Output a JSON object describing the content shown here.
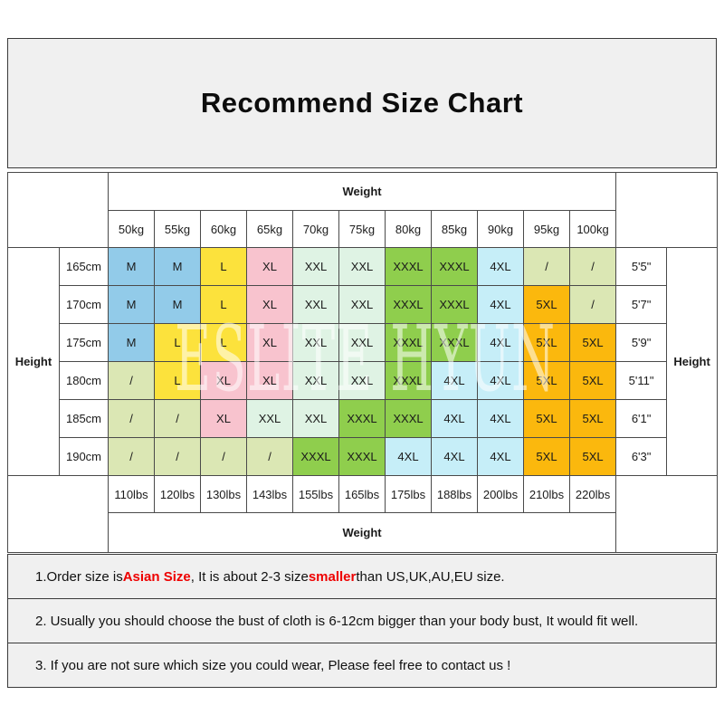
{
  "title": "Recommend Size Chart",
  "watermark": "ESLITE HYUN",
  "colors": {
    "title_bg": "#f0f0f0",
    "note_bg": "#f0f0f0",
    "border": "#4a4a4a",
    "accent_red": "#ee0000"
  },
  "table": {
    "weight_label_top": "Weight",
    "weight_label_bottom": "Weight",
    "height_label_left": "Height",
    "height_label_right": "Height",
    "weights_kg": [
      "50kg",
      "55kg",
      "60kg",
      "65kg",
      "70kg",
      "75kg",
      "80kg",
      "85kg",
      "90kg",
      "95kg",
      "100kg"
    ],
    "weights_lbs": [
      "110lbs",
      "120lbs",
      "130lbs",
      "143lbs",
      "155lbs",
      "165lbs",
      "175lbs",
      "188lbs",
      "200lbs",
      "210lbs",
      "220lbs"
    ],
    "heights_cm": [
      "165cm",
      "170cm",
      "175cm",
      "180cm",
      "185cm",
      "190cm"
    ],
    "heights_ft": [
      "5'5\"",
      "5'7\"",
      "5'9\"",
      "5'11\"",
      "6'1\"",
      "6'3\""
    ],
    "sizes": [
      [
        "M",
        "M",
        "L",
        "XL",
        "XXL",
        "XXL",
        "XXXL",
        "XXXL",
        "4XL",
        "/",
        "/"
      ],
      [
        "M",
        "M",
        "L",
        "XL",
        "XXL",
        "XXL",
        "XXXL",
        "XXXL",
        "4XL",
        "5XL",
        "/"
      ],
      [
        "M",
        "L",
        "L",
        "XL",
        "XXL",
        "XXL",
        "XXXL",
        "XXXL",
        "4XL",
        "5XL",
        "5XL"
      ],
      [
        "/",
        "L",
        "XL",
        "XL",
        "XXL",
        "XXL",
        "XXXL",
        "4XL",
        "4XL",
        "5XL",
        "5XL"
      ],
      [
        "/",
        "/",
        "XL",
        "XXL",
        "XXL",
        "XXXL",
        "XXXL",
        "4XL",
        "4XL",
        "5XL",
        "5XL"
      ],
      [
        "/",
        "/",
        "/",
        "/",
        "XXXL",
        "XXXL",
        "4XL",
        "4XL",
        "4XL",
        "5XL",
        "5XL"
      ]
    ],
    "size_colors": {
      "M": "#92cbe9",
      "L": "#fce23c",
      "XL": "#f8c3ce",
      "XXL": "#dff3e4",
      "XXXL": "#8fce4d",
      "4XL": "#c6eef8",
      "5XL": "#fbb80d",
      "/": "#dbe7b4"
    }
  },
  "notes": [
    {
      "parts": [
        {
          "text": "1.Order size is ",
          "style": "normal"
        },
        {
          "text": "Asian Size",
          "style": "red-bold"
        },
        {
          "text": ", It is about 2-3 size ",
          "style": "normal"
        },
        {
          "text": "smaller",
          "style": "red-bold"
        },
        {
          "text": " than US,UK,AU,EU size.",
          "style": "normal"
        }
      ]
    },
    {
      "parts": [
        {
          "text": "2. Usually you should choose the bust of cloth is 6-12cm bigger than your body bust, It would fit well.",
          "style": "normal"
        }
      ]
    },
    {
      "parts": [
        {
          "text": "3. If you are not sure which size you could wear, Please feel free to contact us !",
          "style": "normal"
        }
      ]
    }
  ],
  "chart_data": {
    "type": "table",
    "title": "Recommend Size Chart",
    "column_header_label": "Weight",
    "row_header_label": "Height",
    "columns_weight_kg": [
      "50kg",
      "55kg",
      "60kg",
      "65kg",
      "70kg",
      "75kg",
      "80kg",
      "85kg",
      "90kg",
      "95kg",
      "100kg"
    ],
    "columns_weight_lbs": [
      "110lbs",
      "120lbs",
      "130lbs",
      "143lbs",
      "155lbs",
      "165lbs",
      "175lbs",
      "188lbs",
      "200lbs",
      "210lbs",
      "220lbs"
    ],
    "rows_height_cm": [
      "165cm",
      "170cm",
      "175cm",
      "180cm",
      "185cm",
      "190cm"
    ],
    "rows_height_ftin": [
      "5'5\"",
      "5'7\"",
      "5'9\"",
      "5'11\"",
      "6'1\"",
      "6'3\""
    ],
    "size_matrix": [
      [
        "M",
        "M",
        "L",
        "XL",
        "XXL",
        "XXL",
        "XXXL",
        "XXXL",
        "4XL",
        "/",
        "/"
      ],
      [
        "M",
        "M",
        "L",
        "XL",
        "XXL",
        "XXL",
        "XXXL",
        "XXXL",
        "4XL",
        "5XL",
        "/"
      ],
      [
        "M",
        "L",
        "L",
        "XL",
        "XXL",
        "XXL",
        "XXXL",
        "XXXL",
        "4XL",
        "5XL",
        "5XL"
      ],
      [
        "/",
        "L",
        "XL",
        "XL",
        "XXL",
        "XXL",
        "XXXL",
        "4XL",
        "4XL",
        "5XL",
        "5XL"
      ],
      [
        "/",
        "/",
        "XL",
        "XXL",
        "XXL",
        "XXXL",
        "XXXL",
        "4XL",
        "4XL",
        "5XL",
        "5XL"
      ],
      [
        "/",
        "/",
        "/",
        "/",
        "XXXL",
        "XXXL",
        "4XL",
        "4XL",
        "4XL",
        "5XL",
        "5XL"
      ]
    ]
  }
}
